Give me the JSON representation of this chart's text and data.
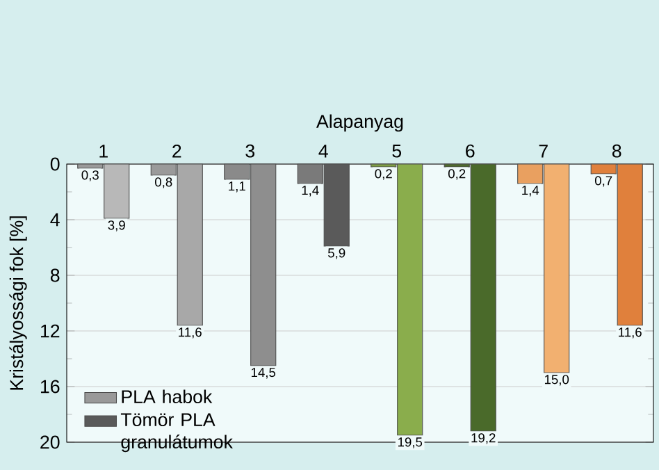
{
  "chart_data": {
    "type": "bar",
    "xlabel": "Alapanyag",
    "ylabel": "Kristályossági fok [%]",
    "categories": [
      "1",
      "2",
      "3",
      "4",
      "5",
      "6",
      "7",
      "8"
    ],
    "series": [
      {
        "name": "PLA habok",
        "color": "#999999",
        "colors": [
          "#9a9a9a",
          "#9a9a9a",
          "#8a8a8a",
          "#7a7a7a",
          "#7f9f45",
          "#4f6b2c",
          "#e9a060",
          "#e0803c"
        ],
        "values": [
          0.3,
          0.8,
          1.1,
          1.4,
          0.2,
          0.2,
          1.4,
          0.7
        ],
        "value_labels": [
          "0,3",
          "0,8",
          "1,1",
          "1,4",
          "0,2",
          "0,2",
          "1,4",
          "0,7"
        ]
      },
      {
        "name": "Tömör PLA granulátumok",
        "color": "#5a5a5a",
        "colors": [
          "#b8b8b8",
          "#a8a8a8",
          "#8e8e8e",
          "#5a5a5a",
          "#8aad4c",
          "#4a6a2a",
          "#f2b070",
          "#e0803c"
        ],
        "values": [
          3.9,
          11.6,
          14.5,
          5.9,
          19.5,
          19.2,
          15.0,
          11.6
        ],
        "value_labels": [
          "3,9",
          "11,6",
          "14,5",
          "5,9",
          "19,5",
          "19,2",
          "15,0",
          "11,6"
        ]
      }
    ],
    "ylim": [
      20,
      0
    ],
    "yticks": [
      0,
      4,
      8,
      12,
      16,
      20
    ],
    "grid": "y",
    "legend": "bottom left"
  }
}
